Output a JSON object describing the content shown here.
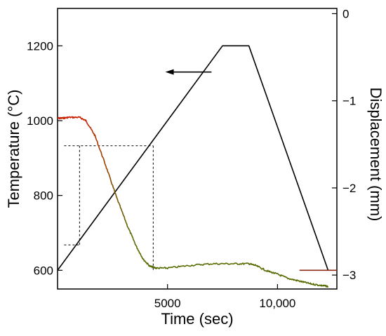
{
  "chart_data": {
    "type": "line",
    "xlabel": "Time (sec)",
    "ylabel_left": "Temperature (°C)",
    "ylabel_right": "Displacement (mm)",
    "xlim": [
      0,
      12700
    ],
    "ylim_left": [
      550,
      1300
    ],
    "ylim_right": [
      -3.16,
      0.06
    ],
    "x_ticks": [
      5000,
      10000
    ],
    "x_tick_labels": [
      "5000",
      "10,000"
    ],
    "y_left_ticks": [
      600,
      800,
      1000,
      1200
    ],
    "y_left_tick_labels": [
      "600",
      "800",
      "1000",
      "1200"
    ],
    "y_right_ticks": [
      0,
      -1,
      -2,
      -3
    ],
    "y_right_tick_labels": [
      "0",
      "−1",
      "−2",
      "−3"
    ],
    "grid": false,
    "series": [
      {
        "axis": "left",
        "color": "#000000",
        "x": [
          0,
          7500,
          8700,
          12300
        ],
        "y": [
          600,
          1200,
          1200,
          600
        ]
      },
      {
        "axis": "right",
        "color": "#cc2200",
        "gradient_to": "#556b00",
        "x": [
          0,
          200,
          500,
          1000,
          1300,
          1700,
          2200,
          2700,
          3200,
          3600,
          3900,
          4200,
          4500,
          5000,
          6000,
          7000,
          8000,
          8700,
          9000,
          9500,
          10000,
          10500,
          11000,
          11500,
          12000,
          12300
        ],
        "y": [
          -1.2,
          -1.2,
          -1.19,
          -1.19,
          -1.23,
          -1.4,
          -1.75,
          -2.12,
          -2.45,
          -2.68,
          -2.82,
          -2.9,
          -2.92,
          -2.92,
          -2.89,
          -2.87,
          -2.87,
          -2.87,
          -2.89,
          -2.95,
          -2.99,
          -3.04,
          -3.07,
          -3.1,
          -3.12,
          -3.13
        ]
      }
    ],
    "guides": [
      {
        "x1": 300,
        "y1": 933,
        "x2": 4350,
        "y2": 933
      },
      {
        "x1": 1000,
        "y1": 933,
        "x2": 1000,
        "y2": 668
      },
      {
        "x1": 300,
        "y1": 668,
        "x2": 1000,
        "y2": 668
      },
      {
        "x1": 4350,
        "y1": 933,
        "x2": 4350,
        "y2": 600
      }
    ],
    "arrows": [
      {
        "direction": "left",
        "color": "#000000",
        "x_from": 7000,
        "x_to": 4900,
        "y": 1130
      },
      {
        "direction": "right",
        "color": "#8b2a15",
        "x_from": 11000,
        "x_to": 13200,
        "y": 600
      }
    ]
  }
}
